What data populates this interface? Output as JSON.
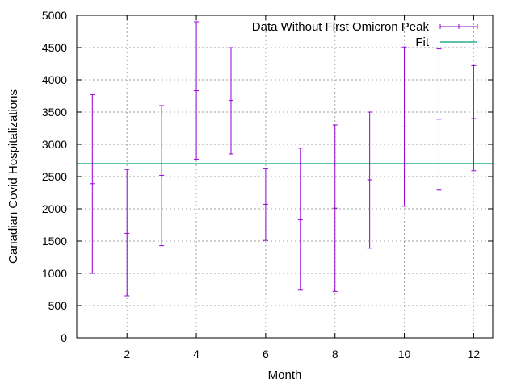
{
  "chart_data": {
    "type": "errorbar",
    "xlabel": "Month",
    "ylabel": "Canadian Covid Hospitalizations",
    "xlim": [
      0.55,
      12.55
    ],
    "ylim": [
      0,
      5000
    ],
    "xticks": [
      2,
      4,
      6,
      8,
      10,
      12
    ],
    "yticks": [
      0,
      500,
      1000,
      1500,
      2000,
      2500,
      3000,
      3500,
      4000,
      4500,
      5000
    ],
    "grid": true,
    "legend_position": "top-right",
    "series": [
      {
        "name": "Data Without First Omicron Peak",
        "kind": "errorbars",
        "color": "#9400d3",
        "points": [
          {
            "x": 1,
            "y": 2390,
            "ylow": 1000,
            "yhigh": 3770
          },
          {
            "x": 2,
            "y": 1620,
            "ylow": 650,
            "yhigh": 2610
          },
          {
            "x": 3,
            "y": 2520,
            "ylow": 1430,
            "yhigh": 3600
          },
          {
            "x": 4,
            "y": 3830,
            "ylow": 2770,
            "yhigh": 4900
          },
          {
            "x": 5,
            "y": 3680,
            "ylow": 2850,
            "yhigh": 4500
          },
          {
            "x": 6,
            "y": 2070,
            "ylow": 1510,
            "yhigh": 2630
          },
          {
            "x": 7,
            "y": 1830,
            "ylow": 740,
            "yhigh": 2940
          },
          {
            "x": 8,
            "y": 2010,
            "ylow": 720,
            "yhigh": 3300
          },
          {
            "x": 9,
            "y": 2450,
            "ylow": 1390,
            "yhigh": 3500
          },
          {
            "x": 10,
            "y": 3270,
            "ylow": 2040,
            "yhigh": 4510
          },
          {
            "x": 11,
            "y": 3390,
            "ylow": 2290,
            "yhigh": 4480
          },
          {
            "x": 12,
            "y": 3400,
            "ylow": 2590,
            "yhigh": 4220
          }
        ]
      },
      {
        "name": "Fit",
        "kind": "line",
        "color": "#009e73",
        "value": 2700
      }
    ]
  }
}
